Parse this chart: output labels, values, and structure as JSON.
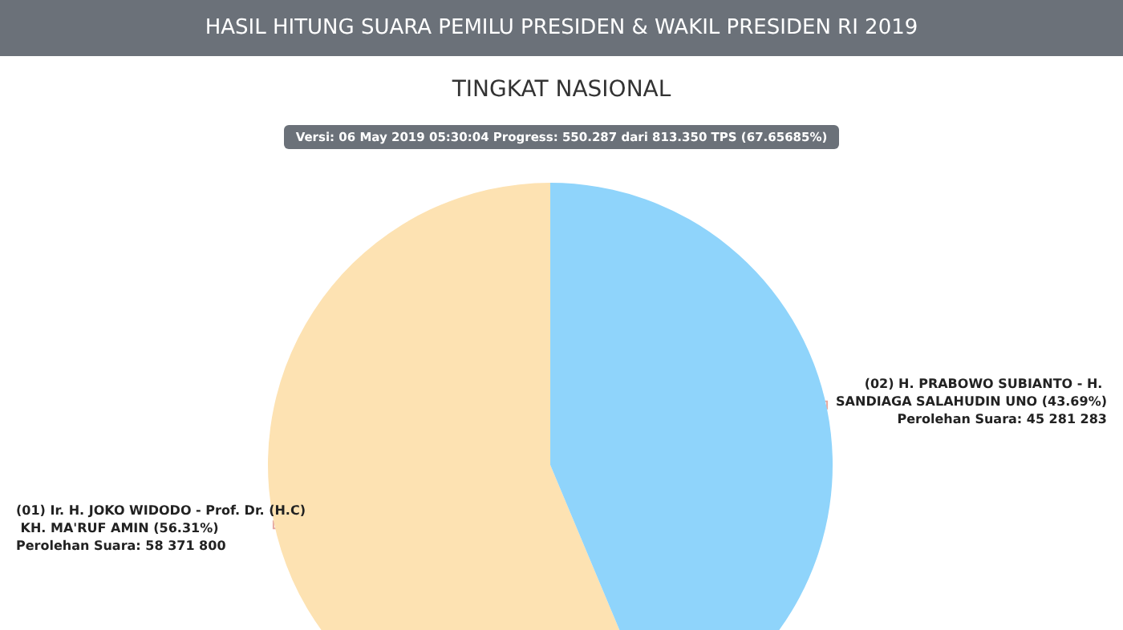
{
  "chart_data": {
    "type": "pie",
    "title": "HASIL HITUNG SUARA PEMILU PRESIDEN & WAKIL PRESIDEN RI 2019",
    "subtitle": "TINGKAT NASIONAL",
    "annotations": [
      "Versi: 06 May 2019 05:30:04 Progress: 550.287 dari 813.350 TPS (67.65685%)"
    ],
    "categories": [
      "(01) Ir. H. JOKO WIDODO - Prof. Dr. (H.C) KH. MA'RUF AMIN (56.31%)",
      "(02) H. PRABOWO SUBIANTO - H. SANDIAGA SALAHUDIN UNO (43.69%)"
    ],
    "values": [
      58371800,
      45281283
    ],
    "value_labels": [
      "Perolehan Suara: 58 371 800",
      "Perolehan Suara: 45 281 283"
    ],
    "colors": [
      "#fde2b2",
      "#8fd4fb"
    ],
    "legend": false
  }
}
